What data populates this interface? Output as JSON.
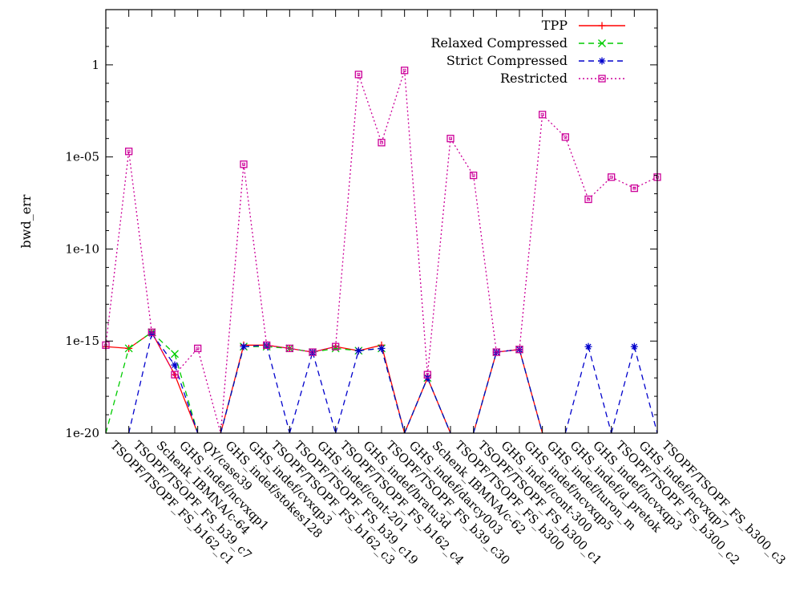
{
  "chart_data": {
    "type": "line",
    "ylabel": "bwd_err",
    "yscale": "log",
    "ylim": [
      1e-20,
      1000.0
    ],
    "yticks": [
      {
        "value": 1e-20,
        "label": "1e-20"
      },
      {
        "value": 1e-15,
        "label": "1e-15"
      },
      {
        "value": 1e-10,
        "label": "1e-10"
      },
      {
        "value": 1e-05,
        "label": "1e-05"
      },
      {
        "value": 1,
        "label": "1"
      }
    ],
    "grid": false,
    "legend_position": "top-right",
    "categories": [
      "TSOPF/TSOPF_FS_b162_c1",
      "TSOPF/TSOPF_FS_b39_c7",
      "Schenk_IBMNA/c-64",
      "GHS_indef/ncvxqp1",
      "QY/case39",
      "GHS_indef/stokes128",
      "GHS_indef/cvxqp3",
      "TSOPF/TSOPF_FS_b162_c3",
      "TSOPF/TSOPF_FS_b39_c19",
      "GHS_indef/cont-201",
      "TSOPF/TSOPF_FS_b162_c4",
      "GHS_indef/bratu3d",
      "TSOPF/TSOPF_FS_b39_c30",
      "GHS_indef/darcy003",
      "Schenk_IBMNA/c-62",
      "TSOPF/TSOPF_FS_b300",
      "TSOPF/TSOPF_FS_b300_c1",
      "GHS_indef/cont-300",
      "GHS_indef/ncvxqp5",
      "GHS_indef/turon_m",
      "GHS_indef/d_pretok",
      "GHS_indef/ncvxqp3",
      "TSOPF/TSOPF_FS_b300_c2",
      "GHS_indef/ncvxqp7",
      "TSOPF/TSOPF_FS_b300_c3"
    ],
    "series": [
      {
        "name": "TPP",
        "color": "#ff0000",
        "marker": "plus",
        "dash": "solid",
        "values": [
          5e-16,
          4e-16,
          3e-15,
          1.5e-17,
          null,
          null,
          6e-16,
          6e-16,
          4e-16,
          2.5e-16,
          5e-16,
          3e-16,
          6e-16,
          null,
          1e-17,
          null,
          null,
          2.5e-16,
          3.5e-16,
          null,
          null,
          null,
          null,
          null,
          null
        ]
      },
      {
        "name": "Relaxed Compressed",
        "color": "#00cc00",
        "marker": "cross",
        "dash": "dashed",
        "values": [
          null,
          4e-16,
          3e-15,
          2e-16,
          null,
          null,
          5e-16,
          5e-16,
          4e-16,
          2.5e-16,
          4e-16,
          3e-16,
          4e-16,
          null,
          1e-17,
          null,
          null,
          2.5e-16,
          3.5e-16,
          null,
          null,
          null,
          null,
          null,
          null
        ]
      },
      {
        "name": "Strict Compressed",
        "color": "#0000cc",
        "marker": "star",
        "dash": "dashed",
        "values": [
          null,
          null,
          2.5e-15,
          5e-17,
          null,
          null,
          5e-16,
          6e-16,
          null,
          2.5e-16,
          null,
          3e-16,
          4e-16,
          null,
          1e-17,
          null,
          null,
          2.5e-16,
          3.5e-16,
          null,
          null,
          5e-16,
          null,
          5e-16,
          null
        ]
      },
      {
        "name": "Restricted",
        "color": "#cc0099",
        "marker": "square",
        "dash": "dotted",
        "values": [
          6e-16,
          2e-05,
          3e-15,
          1.5e-17,
          4e-16,
          null,
          4e-06,
          6e-16,
          4e-16,
          2.5e-16,
          5e-16,
          0.3,
          6e-05,
          0.5,
          1.5e-17,
          0.0001,
          1e-06,
          2.5e-16,
          3.5e-16,
          0.002,
          0.00012,
          5e-08,
          8e-07,
          2e-07,
          8e-07
        ]
      }
    ]
  }
}
